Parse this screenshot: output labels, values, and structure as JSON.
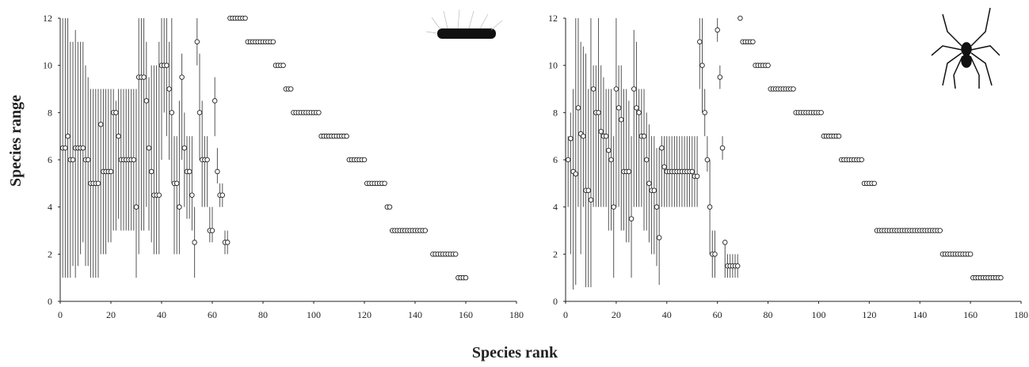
{
  "labels": {
    "ylabel": "Species range",
    "xlabel": "Species rank"
  },
  "chart_data": [
    {
      "type": "scatter",
      "x": [
        1,
        2,
        3,
        4,
        5,
        6,
        7,
        8,
        9,
        10,
        11,
        12,
        13,
        14,
        15,
        16,
        17,
        18,
        19,
        20,
        21,
        22,
        23,
        24,
        25,
        26,
        27,
        28,
        29,
        30,
        31,
        32,
        33,
        34,
        35,
        36,
        37,
        38,
        39,
        40,
        41,
        42,
        43,
        44,
        45,
        46,
        47,
        48,
        49,
        50,
        51,
        52,
        53,
        54,
        55,
        56,
        57,
        58,
        59,
        60,
        61,
        62,
        63,
        64,
        65,
        66,
        67,
        68,
        69,
        70,
        71,
        72,
        73,
        74,
        75,
        76,
        77,
        78,
        79,
        80,
        81,
        82,
        83,
        84,
        85,
        86,
        87,
        88,
        89,
        90,
        91,
        92,
        93,
        94,
        95,
        96,
        97,
        98,
        99,
        100,
        101,
        102,
        103,
        104,
        105,
        106,
        107,
        108,
        109,
        110,
        111,
        112,
        113,
        114,
        115,
        116,
        117,
        118,
        119,
        120,
        121,
        122,
        123,
        124,
        125,
        126,
        127,
        128,
        129,
        130,
        131,
        132,
        133,
        134,
        135,
        136,
        137,
        138,
        139,
        140,
        141,
        142,
        143,
        144,
        147,
        148,
        149,
        150,
        151,
        152,
        153,
        154,
        155,
        156,
        157,
        158,
        159,
        160
      ],
      "values": [
        6.5,
        6.5,
        7,
        6,
        6,
        6.5,
        6.5,
        6.5,
        6.5,
        6,
        6,
        5,
        5,
        5,
        5,
        7.5,
        5.5,
        5.5,
        5.5,
        5.5,
        8,
        8,
        7,
        6,
        6,
        6,
        6,
        6,
        6,
        4,
        9.5,
        9.5,
        9.5,
        8.5,
        6.5,
        5.5,
        4.5,
        4.5,
        4.5,
        10,
        10,
        10,
        9,
        8,
        5,
        5,
        4,
        9.5,
        6.5,
        5.5,
        5.5,
        4.5,
        2.5,
        11,
        8,
        6,
        6,
        6,
        3,
        3,
        8.5,
        5.5,
        4.5,
        4.5,
        2.5,
        2.5,
        12,
        12,
        12,
        12,
        12,
        12,
        12,
        11,
        11,
        11,
        11,
        11,
        11,
        11,
        11,
        11,
        11,
        11,
        10,
        10,
        10,
        10,
        9,
        9,
        9,
        8,
        8,
        8,
        8,
        8,
        8,
        8,
        8,
        8,
        8,
        8,
        7,
        7,
        7,
        7,
        7,
        7,
        7,
        7,
        7,
        7,
        7,
        6,
        6,
        6,
        6,
        6,
        6,
        6,
        5,
        5,
        5,
        5,
        5,
        5,
        5,
        5,
        4,
        4,
        3,
        3,
        3,
        3,
        3,
        3,
        3,
        3,
        3,
        3,
        3,
        3,
        3,
        3,
        2,
        2,
        2,
        2,
        2,
        2,
        2,
        2,
        2,
        2,
        1,
        1,
        1,
        1
      ],
      "ylow": [
        1,
        1,
        1,
        1,
        1.5,
        1,
        1.5,
        2,
        2.5,
        1.5,
        1.5,
        1,
        1,
        1,
        1,
        2,
        2,
        2,
        2.5,
        2.5,
        3,
        3,
        3.5,
        3,
        3,
        3,
        3,
        3,
        3,
        1,
        2,
        3,
        3,
        4,
        3,
        2.5,
        2,
        2,
        2,
        6,
        8,
        7,
        6,
        5,
        2,
        2,
        2,
        6,
        4,
        3.5,
        3.5,
        3,
        1,
        10,
        6,
        4,
        4,
        4,
        2.5,
        2.5,
        7,
        5,
        4,
        4,
        2,
        2,
        null,
        null,
        null,
        null,
        null,
        null,
        null,
        null,
        null,
        null,
        null,
        null,
        null,
        null,
        null,
        null,
        null,
        null,
        null,
        null,
        null,
        null,
        null,
        null,
        null,
        null,
        null,
        null,
        null,
        null,
        null,
        null,
        null,
        null,
        null,
        null,
        null,
        null,
        null,
        null,
        null,
        null,
        null,
        null,
        null,
        null,
        null,
        null,
        null,
        null,
        null,
        null,
        null,
        null,
        null,
        null,
        null,
        null,
        null,
        null,
        null,
        null,
        null,
        null,
        null,
        null,
        null,
        null,
        null,
        null,
        null,
        null,
        null,
        null,
        null,
        null,
        null,
        null,
        null,
        null,
        null,
        null,
        null,
        null,
        null,
        null,
        null,
        null,
        null,
        null
      ],
      "yhigh": [
        12,
        12,
        12,
        11,
        11,
        11.5,
        11,
        11,
        11,
        10,
        9.5,
        9,
        9,
        9,
        9,
        9,
        9,
        9,
        9,
        9,
        9,
        8.5,
        9,
        9,
        9,
        9,
        9,
        9,
        9,
        9,
        12,
        12,
        12,
        11,
        9.5,
        10,
        10,
        10,
        11,
        12,
        12,
        12,
        11,
        12,
        7,
        7,
        8.5,
        10.5,
        8,
        7,
        7,
        7,
        4,
        12,
        10.5,
        8.5,
        7,
        7,
        4,
        4,
        9.5,
        6.5,
        5,
        5,
        3,
        3,
        null,
        null,
        null,
        null,
        null,
        null,
        null,
        null,
        null,
        null,
        null,
        null,
        null,
        null,
        null,
        null,
        null,
        null,
        null,
        null,
        null,
        null,
        null,
        null,
        null,
        null,
        null,
        null,
        null,
        null,
        null,
        null,
        null,
        null,
        null,
        null,
        null,
        null,
        null,
        null,
        null,
        null,
        null,
        null,
        null,
        null,
        null,
        null,
        null,
        null,
        null,
        null,
        null,
        null,
        null,
        null,
        null,
        null,
        null,
        null,
        null,
        null,
        null,
        null,
        null,
        null,
        null,
        null,
        null,
        null,
        null,
        null,
        null,
        null,
        null,
        null,
        null,
        null,
        null,
        null,
        null,
        null,
        null,
        null,
        null,
        null,
        null,
        null,
        null,
        null
      ],
      "xlim": [
        0,
        180
      ],
      "ylim": [
        0,
        12
      ],
      "xticks": [
        0,
        20,
        40,
        60,
        80,
        100,
        120,
        140,
        160,
        180
      ],
      "yticks": [
        0,
        2,
        4,
        6,
        8,
        10,
        12
      ]
    },
    {
      "type": "scatter",
      "x": [
        1,
        2,
        3,
        4,
        5,
        6,
        7,
        8,
        9,
        10,
        11,
        12,
        13,
        14,
        15,
        16,
        17,
        18,
        19,
        20,
        21,
        22,
        23,
        24,
        25,
        26,
        27,
        28,
        29,
        30,
        31,
        32,
        33,
        34,
        35,
        36,
        37,
        38,
        39,
        40,
        41,
        42,
        43,
        44,
        45,
        46,
        47,
        48,
        49,
        50,
        51,
        52,
        53,
        54,
        55,
        56,
        57,
        58,
        59,
        60,
        61,
        62,
        63,
        64,
        65,
        66,
        67,
        68,
        69,
        70,
        71,
        72,
        73,
        74,
        75,
        76,
        77,
        78,
        79,
        80,
        81,
        82,
        83,
        84,
        85,
        86,
        87,
        88,
        89,
        90,
        91,
        92,
        93,
        94,
        95,
        96,
        97,
        98,
        99,
        100,
        101,
        102,
        103,
        104,
        105,
        106,
        107,
        108,
        109,
        110,
        111,
        112,
        113,
        114,
        115,
        116,
        117,
        118,
        119,
        120,
        121,
        122,
        123,
        124,
        125,
        126,
        127,
        128,
        129,
        130,
        131,
        132,
        133,
        134,
        135,
        136,
        137,
        138,
        139,
        140,
        141,
        142,
        143,
        144,
        145,
        146,
        147,
        148,
        149,
        150,
        151,
        152,
        153,
        154,
        155,
        156,
        157,
        158,
        159,
        160,
        161,
        162,
        163,
        164,
        165,
        166,
        167,
        168,
        169,
        170,
        171,
        172
      ],
      "values": [
        6,
        6.9,
        5.5,
        5.4,
        8.2,
        7.1,
        7,
        4.7,
        4.7,
        4.3,
        9,
        8,
        8,
        7.2,
        7,
        7,
        6.4,
        6,
        4,
        9,
        8.2,
        7.7,
        5.5,
        5.5,
        5.5,
        3.5,
        9,
        8.2,
        8,
        7,
        7,
        6,
        5,
        4.7,
        4.7,
        4,
        2.7,
        6.5,
        5.7,
        5.5,
        5.5,
        5.5,
        5.5,
        5.5,
        5.5,
        5.5,
        5.5,
        5.5,
        5.5,
        5.5,
        5.3,
        5.3,
        11,
        10,
        8,
        6,
        4,
        2,
        2,
        11.5,
        9.5,
        6.5,
        2.5,
        1.5,
        1.5,
        1.5,
        1.5,
        1.5,
        12,
        11,
        11,
        11,
        11,
        11,
        10,
        10,
        10,
        10,
        10,
        10,
        9,
        9,
        9,
        9,
        9,
        9,
        9,
        9,
        9,
        9,
        8,
        8,
        8,
        8,
        8,
        8,
        8,
        8,
        8,
        8,
        8,
        7,
        7,
        7,
        7,
        7,
        7,
        7,
        6,
        6,
        6,
        6,
        6,
        6,
        6,
        6,
        6,
        5,
        5,
        5,
        5,
        5,
        3,
        3,
        3,
        3,
        3,
        3,
        3,
        3,
        3,
        3,
        3,
        3,
        3,
        3,
        3,
        3,
        3,
        3,
        3,
        3,
        3,
        3,
        3,
        3,
        3,
        3,
        2,
        2,
        2,
        2,
        2,
        2,
        2,
        2,
        2,
        2,
        2,
        2,
        1,
        1,
        1,
        1,
        1,
        1,
        1,
        1,
        1,
        1,
        1,
        1
      ],
      "ylow": [
        4,
        2,
        0.5,
        0.7,
        4,
        2,
        4,
        0.6,
        0.6,
        0.6,
        4,
        4,
        4,
        4,
        4,
        4,
        3,
        3,
        1,
        4,
        4,
        3,
        3,
        2.5,
        2.5,
        1,
        4,
        4,
        4,
        4,
        3,
        3,
        2.5,
        2,
        2,
        1.5,
        0.7,
        4,
        4,
        4,
        4,
        4,
        4,
        4,
        4,
        4,
        4,
        4,
        4,
        4,
        4,
        4,
        9,
        8,
        7,
        5.5,
        2,
        1,
        1,
        11,
        9,
        6,
        1,
        1,
        1,
        1,
        1,
        1,
        null,
        null,
        null,
        null,
        null,
        null,
        null,
        null,
        null,
        null,
        null,
        null,
        null,
        null,
        null,
        null,
        null,
        null,
        null,
        null,
        null,
        null,
        null,
        null,
        null,
        null,
        null,
        null,
        null,
        null,
        null,
        null,
        null,
        null,
        null,
        null,
        null,
        null,
        null,
        null,
        null,
        null,
        null,
        null,
        null,
        null,
        null,
        null,
        null,
        null,
        null,
        null,
        null,
        null,
        null,
        null,
        null,
        null,
        null,
        null,
        null,
        null,
        null,
        null,
        null,
        null,
        null,
        null,
        null,
        null,
        null,
        null,
        null,
        null,
        null,
        null,
        null,
        null,
        null,
        null,
        null,
        null,
        null,
        null,
        null,
        null,
        null,
        null,
        null,
        null,
        null,
        null,
        null,
        null,
        null,
        null,
        null,
        null,
        null,
        null,
        null,
        null,
        null,
        null
      ],
      "yhigh": [
        7,
        8,
        9,
        12,
        12,
        11,
        10.8,
        10.5,
        9,
        12,
        10,
        10,
        12,
        10,
        9.5,
        9,
        9,
        9,
        7,
        12,
        10,
        10,
        9,
        9,
        8.5,
        7,
        11.5,
        11,
        9,
        9,
        9,
        8,
        7.5,
        7,
        7,
        6.5,
        6.5,
        7,
        7,
        7,
        7,
        7,
        7,
        7,
        7,
        7,
        7,
        7,
        7,
        7,
        7,
        7,
        12,
        12,
        9,
        7,
        6,
        3,
        3,
        12,
        10,
        7,
        2.5,
        2,
        2,
        2,
        2,
        2,
        null,
        null,
        null,
        null,
        null,
        null,
        null,
        null,
        null,
        null,
        null,
        null,
        null,
        null,
        null,
        null,
        null,
        null,
        null,
        null,
        null,
        null,
        null,
        null,
        null,
        null,
        null,
        null,
        null,
        null,
        null,
        null,
        null,
        null,
        null,
        null,
        null,
        null,
        null,
        null,
        null,
        null,
        null,
        null,
        null,
        null,
        null,
        null,
        null,
        null,
        null,
        null,
        null,
        null,
        null,
        null,
        null,
        null,
        null,
        null,
        null,
        null,
        null,
        null,
        null,
        null,
        null,
        null,
        null,
        null,
        null,
        null,
        null,
        null,
        null,
        null,
        null,
        null,
        null,
        null,
        null,
        null,
        null,
        null,
        null,
        null,
        null,
        null,
        null,
        null,
        null,
        null,
        null,
        null,
        null,
        null,
        null,
        null,
        null,
        null,
        null,
        null,
        null,
        null
      ],
      "xlim": [
        0,
        180
      ],
      "ylim": [
        0,
        12
      ],
      "xticks": [
        0,
        20,
        40,
        60,
        80,
        100,
        120,
        140,
        160,
        180
      ],
      "yticks": [
        0,
        2,
        4,
        6,
        8,
        10,
        12
      ]
    }
  ]
}
